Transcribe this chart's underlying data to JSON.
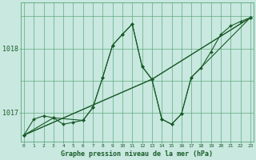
{
  "background_color": "#c8e8e0",
  "grid_color": "#4a9966",
  "line_color": "#1a5c28",
  "marker_color": "#1a5c28",
  "title": "Graphe pression niveau de la mer (hPa)",
  "ylabel_ticks": [
    1017,
    1018
  ],
  "xlim": [
    -0.3,
    23.3
  ],
  "ylim": [
    1016.55,
    1018.72
  ],
  "series": [
    {
      "x": [
        0,
        1,
        2,
        3,
        4,
        5,
        6,
        7,
        8,
        9,
        10,
        11,
        12,
        13,
        14,
        15,
        16,
        17,
        18,
        19,
        20,
        21,
        22,
        23
      ],
      "y": [
        1016.65,
        1016.9,
        1016.95,
        1016.92,
        1016.82,
        1016.85,
        1016.88,
        1017.08,
        1017.55,
        1018.05,
        1018.22,
        1018.38,
        1017.72,
        1017.52,
        1016.9,
        1016.82,
        1016.98,
        1017.55,
        1017.7,
        1017.95,
        1018.22,
        1018.35,
        1018.42,
        1018.48
      ]
    },
    {
      "x": [
        0,
        3,
        6,
        7,
        8,
        9,
        10,
        11,
        12,
        13,
        14,
        15,
        16,
        17,
        23
      ],
      "y": [
        1016.65,
        1016.92,
        1016.88,
        1017.08,
        1017.55,
        1018.05,
        1018.22,
        1018.38,
        1017.72,
        1017.52,
        1016.9,
        1016.82,
        1016.98,
        1017.55,
        1018.48
      ]
    },
    {
      "x": [
        0,
        13,
        23
      ],
      "y": [
        1016.65,
        1017.52,
        1018.48
      ]
    },
    {
      "x": [
        0,
        13,
        23
      ],
      "y": [
        1016.65,
        1017.52,
        1018.48
      ]
    }
  ],
  "figsize": [
    3.2,
    2.0
  ],
  "dpi": 100
}
